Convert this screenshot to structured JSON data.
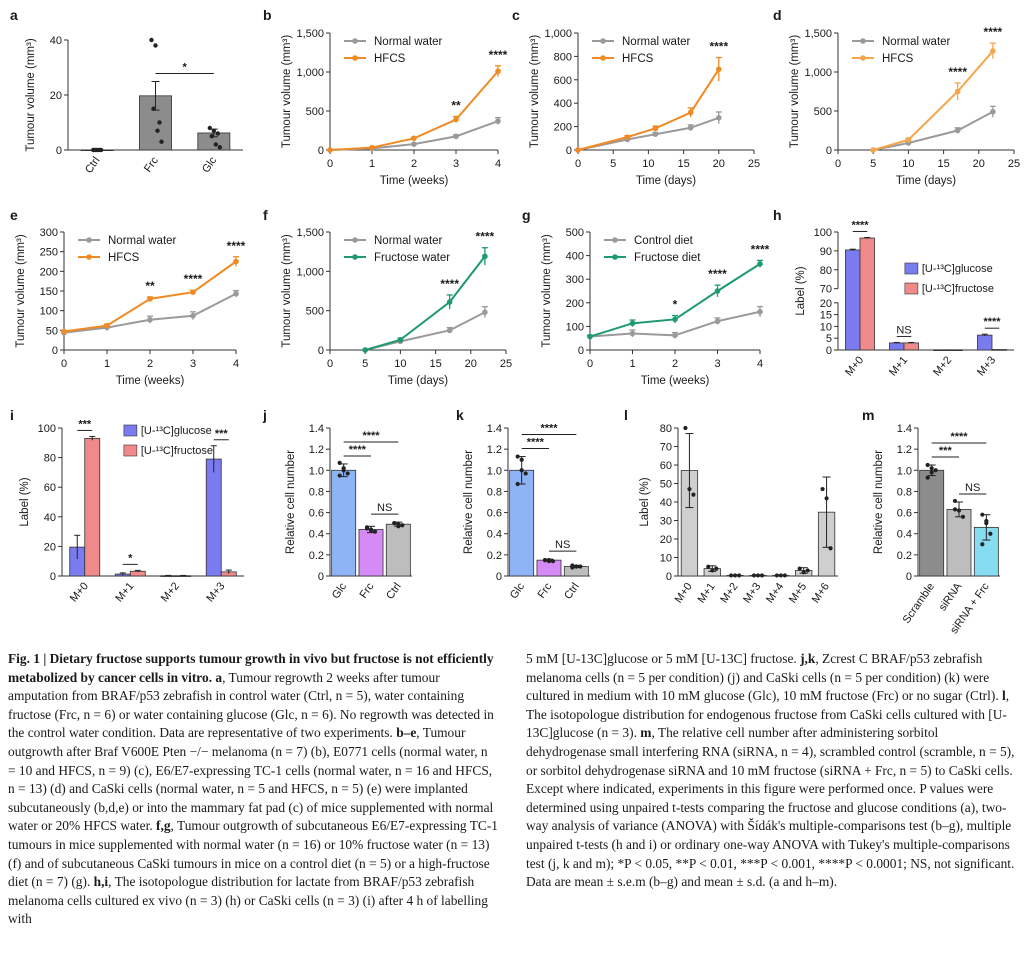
{
  "colors": {
    "grey": "#9a9a9a",
    "orange": "#f08a24",
    "lightorange": "#f5a54a",
    "green": "#1e9a6e",
    "blue": "#7b7bf0",
    "red": "#f08a8a",
    "barblue": "#8fb4f5",
    "violet": "#d58af5",
    "lightgrey": "#cfcfcf",
    "darkgrey": "#8c8c8c",
    "midgrey": "#bdbdbd",
    "cyan": "#86dcf0"
  },
  "chart_data": [
    {
      "id": "a",
      "panel": "a",
      "type": "bar",
      "ylabel": "Tumour volume (mm³)",
      "categories": [
        "Ctrl",
        "Frc",
        "Glc"
      ],
      "values": [
        0,
        19.7,
        6.2
      ],
      "errors": [
        0,
        5.2,
        1.4
      ],
      "ylim": [
        0,
        40
      ],
      "yticks": [
        "0",
        "20",
        "40"
      ],
      "points": [
        [
          0,
          0,
          0,
          0,
          0
        ],
        [
          40,
          38,
          10,
          15,
          7,
          3
        ],
        [
          8,
          7,
          6,
          5,
          2,
          1
        ]
      ],
      "annotations": [
        {
          "text": "*",
          "between": [
            "Frc",
            "Glc"
          ]
        }
      ]
    },
    {
      "id": "b",
      "panel": "b",
      "type": "line",
      "xlabel": "Time (weeks)",
      "ylabel": "Tumour volume (mm³)",
      "x": [
        0,
        1,
        2,
        3,
        4
      ],
      "xlim": [
        0,
        4
      ],
      "ylim": [
        0,
        1500
      ],
      "xticks": [
        "0",
        "1",
        "2",
        "3",
        "4"
      ],
      "yticks": [
        "0",
        "500",
        "1,000",
        "1,500"
      ],
      "series": [
        {
          "name": "Normal water",
          "values": [
            0,
            20,
            75,
            175,
            370
          ],
          "errors": [
            0,
            5,
            10,
            20,
            45
          ]
        },
        {
          "name": "HFCS",
          "values": [
            0,
            30,
            150,
            390,
            1010
          ],
          "errors": [
            0,
            5,
            15,
            40,
            70
          ]
        }
      ],
      "sig": [
        {
          "x": 3,
          "text": "**"
        },
        {
          "x": 4,
          "text": "****"
        }
      ]
    },
    {
      "id": "c",
      "panel": "c",
      "type": "line",
      "xlabel": "Time (days)",
      "ylabel": "Tumour volume (mm³)",
      "x": [
        0,
        7,
        11,
        16,
        20
      ],
      "xlim": [
        0,
        25
      ],
      "ylim": [
        0,
        1000
      ],
      "xticks": [
        "0",
        "5",
        "10",
        "15",
        "20",
        "25"
      ],
      "yticks": [
        "0",
        "200",
        "400",
        "600",
        "800",
        "1,000"
      ],
      "series": [
        {
          "name": "Normal water",
          "values": [
            0,
            90,
            135,
            190,
            275
          ],
          "errors": [
            0,
            10,
            15,
            25,
            50
          ]
        },
        {
          "name": "HFCS",
          "values": [
            0,
            110,
            185,
            320,
            690
          ],
          "errors": [
            0,
            12,
            20,
            40,
            100
          ]
        }
      ],
      "sig": [
        {
          "x": 20,
          "text": "****"
        }
      ]
    },
    {
      "id": "d",
      "panel": "d",
      "type": "line",
      "xlabel": "Time (days)",
      "ylabel": "Tumour volume (mm³)",
      "x": [
        5,
        10,
        17,
        22
      ],
      "xlim": [
        0,
        25
      ],
      "ylim": [
        0,
        1500
      ],
      "xticks": [
        "0",
        "5",
        "10",
        "15",
        "20",
        "25"
      ],
      "yticks": [
        "0",
        "500",
        "1,000",
        "1,500"
      ],
      "series": [
        {
          "name": "Normal water",
          "values": [
            0,
            90,
            250,
            490
          ],
          "errors": [
            0,
            15,
            35,
            70
          ]
        },
        {
          "name": "HFCS",
          "values": [
            0,
            130,
            750,
            1270
          ],
          "errors": [
            0,
            20,
            110,
            100
          ]
        }
      ],
      "sig": [
        {
          "x": 17,
          "text": "****"
        },
        {
          "x": 22,
          "text": "****"
        }
      ]
    },
    {
      "id": "e",
      "panel": "e",
      "type": "line",
      "xlabel": "Time (weeks)",
      "ylabel": "Tumour volume (mm³)",
      "x": [
        0,
        1,
        2,
        3,
        4
      ],
      "xlim": [
        0,
        4
      ],
      "ylim": [
        0,
        300
      ],
      "xticks": [
        "0",
        "1",
        "2",
        "3",
        "4"
      ],
      "yticks": [
        "0",
        "50",
        "100",
        "150",
        "200",
        "250",
        "300"
      ],
      "series": [
        {
          "name": "Normal water",
          "values": [
            44,
            57,
            77,
            87,
            143
          ],
          "errors": [
            2,
            4,
            9,
            10,
            8
          ]
        },
        {
          "name": "HFCS",
          "values": [
            47,
            62,
            130,
            147,
            225
          ],
          "errors": [
            2,
            4,
            5,
            5,
            12
          ]
        }
      ],
      "sig": [
        {
          "x": 2,
          "text": "**"
        },
        {
          "x": 3,
          "text": "****"
        },
        {
          "x": 4,
          "text": "****"
        }
      ]
    },
    {
      "id": "f",
      "panel": "f",
      "type": "line",
      "xlabel": "Time (days)",
      "ylabel": "Tumour volume (mm³)",
      "x": [
        5,
        10,
        17,
        22
      ],
      "xlim": [
        0,
        25
      ],
      "ylim": [
        0,
        1500
      ],
      "xticks": [
        "0",
        "5",
        "10",
        "15",
        "20",
        "25"
      ],
      "yticks": [
        "0",
        "500",
        "1,000",
        "1,500"
      ],
      "series": [
        {
          "name": "Normal water",
          "values": [
            0,
            110,
            250,
            480
          ],
          "errors": [
            0,
            15,
            35,
            70
          ]
        },
        {
          "name": "Fructose water",
          "values": [
            0,
            130,
            610,
            1190
          ],
          "errors": [
            0,
            20,
            90,
            110
          ]
        }
      ],
      "sig": [
        {
          "x": 17,
          "text": "****"
        },
        {
          "x": 22,
          "text": "****"
        }
      ]
    },
    {
      "id": "g",
      "panel": "g",
      "type": "line",
      "xlabel": "Time (weeks)",
      "ylabel": "Tumour volume (mm³)",
      "x": [
        0,
        1,
        2,
        3,
        4
      ],
      "xlim": [
        0,
        4
      ],
      "ylim": [
        0,
        500
      ],
      "xticks": [
        "0",
        "1",
        "2",
        "3",
        "4"
      ],
      "yticks": [
        "0",
        "100",
        "200",
        "300",
        "400",
        "500"
      ],
      "series": [
        {
          "name": "Control diet",
          "values": [
            57,
            70,
            62,
            122,
            162
          ],
          "errors": [
            5,
            15,
            12,
            14,
            22
          ]
        },
        {
          "name": "Fructose diet",
          "values": [
            57,
            113,
            130,
            250,
            365
          ],
          "errors": [
            5,
            14,
            16,
            25,
            15
          ]
        }
      ],
      "sig": [
        {
          "x": 2,
          "text": "*"
        },
        {
          "x": 3,
          "text": "****"
        },
        {
          "x": 4,
          "text": "****"
        }
      ]
    },
    {
      "id": "h",
      "panel": "h",
      "type": "bar",
      "ylabel": "Label (%)",
      "categories": [
        "M+0",
        "M+1",
        "M+2",
        "M+3"
      ],
      "series": [
        {
          "name": "[U-13C]glucose",
          "values": [
            90.5,
            3.0,
            0.1,
            6.3
          ],
          "errors": [
            0.4,
            0.2,
            0.1,
            0.4
          ]
        },
        {
          "name": "[U-13C]fructose",
          "values": [
            96.8,
            3.0,
            0.1,
            0.2
          ],
          "errors": [
            0.3,
            0.2,
            0.1,
            0.1
          ]
        }
      ],
      "broken_axis": {
        "lower": [
          0,
          20
        ],
        "upper": [
          70,
          100
        ]
      },
      "yticks_lower": [
        "0",
        "5",
        "10",
        "15",
        "20"
      ],
      "yticks_upper": [
        "70",
        "80",
        "90",
        "100"
      ],
      "annotations": [
        {
          "text": "****",
          "group": "M+0"
        },
        {
          "text": "NS",
          "group": "M+1"
        },
        {
          "text": "****",
          "group": "M+3"
        }
      ]
    },
    {
      "id": "i",
      "panel": "i",
      "type": "bar",
      "ylabel": "Label (%)",
      "categories": [
        "M+0",
        "M+1",
        "M+2",
        "M+3"
      ],
      "series": [
        {
          "name": "[U-13C]glucose",
          "values": [
            19.5,
            1.3,
            0.2,
            79
          ],
          "errors": [
            8,
            0.8,
            0.2,
            9
          ]
        },
        {
          "name": "[U-13C]fructose",
          "values": [
            93,
            3.2,
            0.2,
            2.8
          ],
          "errors": [
            1.3,
            0.6,
            0.2,
            1.2
          ]
        }
      ],
      "ylim": [
        0,
        100
      ],
      "yticks": [
        "0",
        "20",
        "40",
        "60",
        "80",
        "100"
      ],
      "annotations": [
        {
          "text": "***",
          "group": "M+0"
        },
        {
          "text": "*",
          "group": "M+1"
        },
        {
          "text": "***",
          "group": "M+3"
        }
      ]
    },
    {
      "id": "j",
      "panel": "j",
      "type": "bar",
      "ylabel": "Relative cell number",
      "categories": [
        "Glc",
        "Frc",
        "Ctrl"
      ],
      "values": [
        1.0,
        0.44,
        0.49
      ],
      "errors": [
        0.06,
        0.03,
        0.02
      ],
      "ylim": [
        0,
        1.4
      ],
      "yticks": [
        "0",
        "0.2",
        "0.4",
        "0.6",
        "0.8",
        "1.0",
        "1.2",
        "1.4"
      ],
      "annotations": [
        {
          "text": "****",
          "between": [
            "Glc",
            "Frc"
          ]
        },
        {
          "text": "****",
          "between": [
            "Glc",
            "Ctrl"
          ]
        },
        {
          "text": "NS",
          "between": [
            "Frc",
            "Ctrl"
          ]
        }
      ]
    },
    {
      "id": "k",
      "panel": "k",
      "type": "bar",
      "ylabel": "Relative cell number",
      "categories": [
        "Glc",
        "Frc",
        "Ctrl"
      ],
      "values": [
        1.0,
        0.15,
        0.09
      ],
      "errors": [
        0.13,
        0.01,
        0.01
      ],
      "ylim": [
        0,
        1.4
      ],
      "yticks": [
        "0",
        "0.2",
        "0.4",
        "0.6",
        "0.8",
        "1.0",
        "1.2",
        "1.4"
      ],
      "annotations": [
        {
          "text": "****",
          "between": [
            "Glc",
            "Frc"
          ]
        },
        {
          "text": "****",
          "between": [
            "Glc",
            "Ctrl"
          ]
        },
        {
          "text": "NS",
          "between": [
            "Frc",
            "Ctrl"
          ]
        }
      ]
    },
    {
      "id": "l",
      "panel": "l",
      "type": "bar",
      "ylabel": "Label (%)",
      "categories": [
        "M+0",
        "M+1",
        "M+2",
        "M+3",
        "M+4",
        "M+5",
        "M+6"
      ],
      "values": [
        57,
        4,
        0.3,
        0.3,
        0.3,
        3,
        34.5
      ],
      "errors": [
        20,
        1.5,
        0.2,
        0.2,
        0.2,
        1.5,
        19
      ],
      "ylim": [
        0,
        80
      ],
      "yticks": [
        "0",
        "10",
        "20",
        "30",
        "40",
        "50",
        "60",
        "70",
        "80"
      ]
    },
    {
      "id": "m",
      "panel": "m",
      "type": "bar",
      "ylabel": "Relative cell number",
      "categories": [
        "Scramble",
        "siRNA",
        "siRNA + Frc"
      ],
      "values": [
        1.0,
        0.63,
        0.46
      ],
      "errors": [
        0.05,
        0.07,
        0.12
      ],
      "ylim": [
        0,
        1.4
      ],
      "yticks": [
        "0",
        "0.2",
        "0.4",
        "0.6",
        "0.8",
        "1.0",
        "1.2",
        "1.4"
      ],
      "annotations": [
        {
          "text": "***",
          "between": [
            "Scramble",
            "siRNA"
          ]
        },
        {
          "text": "****",
          "between": [
            "Scramble",
            "siRNA + Frc"
          ]
        },
        {
          "text": "NS",
          "between": [
            "siRNA",
            "siRNA + Frc"
          ]
        }
      ]
    }
  ],
  "caption": {
    "left": [
      {
        "b": "Fig. 1 | Dietary fructose supports tumour growth in vivo but fructose is not efficiently metabolized by cancer cells in vitro. a",
        "t": ", Tumour regrowth 2 weeks after tumour amputation from BRAF/p53 zebrafish in control water (Ctrl, n = 5), water containing fructose (Frc, n = 6) or water containing glucose (Glc, n = 6). No regrowth was detected in the control water condition. Data are representative of two experiments. "
      },
      {
        "b": "b–e",
        "t": ", Tumour outgrowth after Braf V600E Pten −/− melanoma (n = 7) (b), E0771 cells (normal water, n = 10 and HFCS, n = 9) (c), E6/E7-expressing TC-1 cells (normal water, n = 16 and HFCS, n = 13) (d) and CaSki cells (normal water, n = 5 and HFCS, n = 5) (e) were implanted subcutaneously (b,d,e) or into the mammary fat pad (c) of mice supplemented with normal water or 20% HFCS water. "
      },
      {
        "b": "f,g",
        "t": ", Tumour outgrowth of subcutaneous E6/E7-expressing TC-1 tumours in mice supplemented with normal water (n = 16) or 10% fructose water (n = 13) (f) and of subcutaneous CaSki tumours in mice on a control diet (n = 5) or a high-fructose diet (n = 7) (g). "
      },
      {
        "b": "h,i",
        "t": ", The isotopologue distribution for lactate from BRAF/p53 zebrafish melanoma cells cultured ex vivo (n = 3) (h) or CaSki cells (n = 3) (i) after 4 h of labelling with"
      }
    ],
    "right": [
      {
        "b": "",
        "t": "5 mM [U-13C]glucose or 5 mM [U-13C] fructose. "
      },
      {
        "b": "j,k",
        "t": ", Zcrest C BRAF/p53 zebrafish melanoma cells (n = 5 per condition) (j) and CaSki cells (n = 5 per condition) (k) were cultured in medium with 10 mM glucose (Glc), 10 mM fructose (Frc) or no sugar (Ctrl). "
      },
      {
        "b": "l",
        "t": ", The isotopologue distribution for endogenous fructose from CaSki cells cultured with [U-13C]glucose (n = 3). "
      },
      {
        "b": "m",
        "t": ", The relative cell number after administering sorbitol dehydrogenase small interfering RNA (siRNA, n = 4), scrambled control (scramble, n = 5), or sorbitol dehydrogenase siRNA and 10 mM fructose (siRNA + Frc, n = 5) to CaSki cells. Except where indicated, experiments in this figure were performed once. P values were determined using unpaired t-tests comparing the fructose and glucose conditions (a), two-way analysis of variance (ANOVA) with Šídák's multiple-comparisons test (b–g), multiple unpaired t-tests (h and i) or ordinary one-way ANOVA with Tukey's multiple-comparisons test (j, k and m); *P < 0.05, **P < 0.01, ***P < 0.001, ****P < 0.0001; NS, not significant. Data are mean ± s.e.m (b–g) and mean ± s.d. (a and h–m)."
      }
    ]
  }
}
